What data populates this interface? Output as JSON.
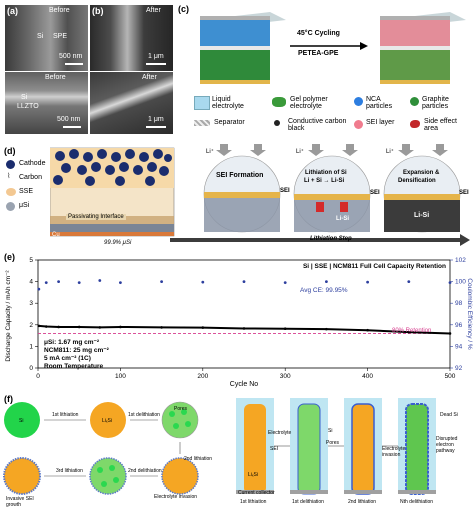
{
  "panel_a": {
    "label": "(a)",
    "tl_before": "Before",
    "tl_si": "Si",
    "tl_spe": "SPE",
    "tl_scale": "500 nm",
    "bl_before": "Before",
    "bl_si": "Si",
    "bl_llzto": "LLZTO",
    "bl_scale": "500 nm"
  },
  "panel_b": {
    "label": "(b)",
    "tr_after": "After",
    "tr_scale": "1 μm",
    "br_after": "After",
    "br_scale": "1 μm"
  },
  "panel_c": {
    "label": "(c)",
    "arrow_top": "45°C Cycling",
    "arrow_bottom": "PETEA-GPE",
    "legend": {
      "liquid": "Liquid electrolyte",
      "gel": "Gel polymer electrolyte",
      "nca": "NCA particles",
      "graphite": "Graphite particles",
      "separator": "Separator",
      "carbon": "Conductive carbon black",
      "sei": "SEI layer",
      "side": "Side effect area"
    }
  },
  "panel_d": {
    "label": "(d)",
    "legend": {
      "cathode": "Cathode",
      "carbon": "Carbon",
      "sse": "SSE",
      "usi": "μSi"
    },
    "passivating": "Passivating Interface",
    "cu": "Cu",
    "si_pct": "99.9% μSi",
    "sei": "SEI",
    "step1": "SEI Formation",
    "step2_line1": "Lithiation of Si",
    "step2_line2": "Li + Si → Li-Si",
    "step3_line1": "Expansion &",
    "step3_line2": "Densification",
    "lisi": "Li-Si",
    "li_plus": "Li⁺",
    "lith_step": "Lithiation Step"
  },
  "panel_e": {
    "label": "(e)",
    "colors": {
      "discharge": "#000000",
      "ce": "#2d3f9e",
      "retention": "#d63a8c"
    }
  },
  "chart_data": {
    "type": "scatter",
    "title": "Si | SSE | NCM811 Full Cell Capacity Retention",
    "xlabel": "Cycle No",
    "ylabel": "Discharge Capacity / mAh cm⁻²",
    "y2label": "Coulombic Efficiency / %",
    "xlim": [
      0,
      500
    ],
    "ylim": [
      0,
      5
    ],
    "y2lim": [
      92,
      102
    ],
    "xticks": [
      0,
      100,
      200,
      300,
      400,
      500
    ],
    "yticks": [
      0,
      1,
      2,
      3,
      4,
      5
    ],
    "y2ticks": [
      92,
      94,
      96,
      98,
      100,
      102
    ],
    "annotations": {
      "avg_ce": "Avg CE: 99.95%",
      "retention": "80% Retention",
      "info_line1": "μSi: 1.67 mg cm⁻²",
      "info_line2": "NCM811: 25 mg cm⁻²",
      "info_line3": "5 mA cm⁻² (1C)",
      "info_line4": "Room Temperature"
    },
    "retention_level": 1.6,
    "series": [
      {
        "axis": "left",
        "x": [
          1,
          10,
          25,
          50,
          75,
          100,
          150,
          200,
          250,
          300,
          350,
          400,
          450,
          500
        ],
        "values": [
          1.95,
          1.92,
          1.9,
          1.9,
          1.88,
          1.9,
          1.88,
          1.87,
          1.83,
          1.82,
          1.8,
          1.75,
          1.66,
          1.6
        ]
      },
      {
        "axis": "right",
        "x": [
          1,
          10,
          25,
          50,
          75,
          100,
          150,
          200,
          250,
          300,
          350,
          400,
          450,
          500
        ],
        "values": [
          99.3,
          99.9,
          100.0,
          99.9,
          100.1,
          99.9,
          100.0,
          99.95,
          100.0,
          99.9,
          100.0,
          99.95,
          100.0,
          99.9
        ]
      }
    ]
  },
  "panel_f": {
    "label": "(f)",
    "li": "Li",
    "lixsi": "LiₓSi",
    "si": "Si",
    "pores": "Pores",
    "electrolyte": "Electrolyte",
    "sei": "SEI",
    "dead_si": "Dead Si",
    "current_collector": "Current collector",
    "first_lith": "1st lithiation",
    "first_delith": "1st delithiation",
    "second_lith": "2nd lithiation",
    "second_delith": "2nd delithiation",
    "third_lith": "3rd lithiation",
    "nth_delith": "Nth delithiation",
    "sei_growth": "Invasive SEI growth",
    "electrolyte_invasion": "Electrolyte invasion",
    "disrupted": "Disrupted electron pathway"
  }
}
